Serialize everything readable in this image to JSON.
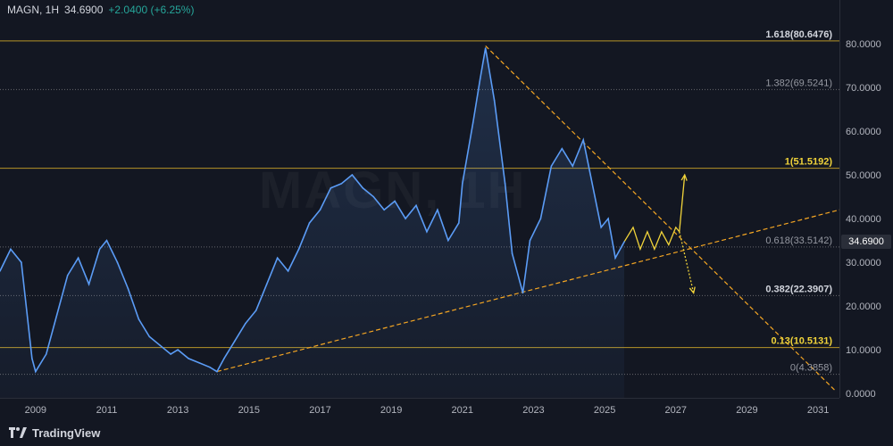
{
  "header": {
    "symbol": "MAGN, 1H",
    "price": "34.6900",
    "change": "+2.0400 (+6.25%)"
  },
  "watermark": "MAGN, 1H",
  "brand": "TradingView",
  "colors": {
    "background": "#131722",
    "price_line": "#5b9cf6",
    "projection": "#f0d33a",
    "trend_line": "#f5a623",
    "fib_highlight": "#c9a227",
    "fib_dotted": "#8a8a8a",
    "up": "#26a69a"
  },
  "chart_data": {
    "type": "line",
    "title": "MAGN, 1H",
    "xlabel": "",
    "ylabel": "",
    "xlim": [
      2008.0,
      2031.6
    ],
    "ylim": [
      -1.0,
      90.0
    ],
    "x_ticks": [
      2009,
      2011,
      2013,
      2015,
      2017,
      2019,
      2021,
      2023,
      2025,
      2027,
      2029,
      2031
    ],
    "y_ticks": [
      0,
      10,
      20,
      30,
      40,
      50,
      60,
      70,
      80
    ],
    "y_tick_labels": [
      "0.0000",
      "10.0000",
      "20.0000",
      "30.0000",
      "40.0000",
      "50.0000",
      "60.0000",
      "70.0000",
      "80.0000"
    ],
    "last_price": 34.69,
    "last_price_label": "34.6900",
    "series": [
      {
        "role": "price",
        "x": [
          2008.0,
          2008.3,
          2008.6,
          2008.9,
          2009.0,
          2009.3,
          2009.6,
          2009.9,
          2010.2,
          2010.5,
          2010.8,
          2011.0,
          2011.3,
          2011.6,
          2011.9,
          2012.2,
          2012.5,
          2012.8,
          2013.0,
          2013.3,
          2013.6,
          2013.9,
          2014.1,
          2014.3,
          2014.6,
          2014.9,
          2015.2,
          2015.5,
          2015.8,
          2016.1,
          2016.4,
          2016.7,
          2017.0,
          2017.3,
          2017.6,
          2017.9,
          2018.2,
          2018.5,
          2018.8,
          2019.1,
          2019.4,
          2019.7,
          2020.0,
          2020.3,
          2020.6,
          2020.9,
          2021.0,
          2021.3,
          2021.5,
          2021.65,
          2021.9,
          2022.2,
          2022.4,
          2022.7,
          2022.9,
          2023.2,
          2023.5,
          2023.8,
          2024.1,
          2024.4,
          2024.6,
          2024.9,
          2025.1,
          2025.3,
          2025.55
        ],
        "y": [
          28,
          33,
          30,
          8,
          5,
          9,
          18,
          27,
          31,
          25,
          33,
          35,
          30,
          24,
          17,
          13,
          11,
          9,
          10,
          8,
          7,
          6,
          5,
          8,
          12,
          16,
          19,
          25,
          31,
          28,
          33,
          39,
          42,
          47,
          48,
          50,
          47,
          45,
          42,
          44,
          40,
          43,
          37,
          42,
          35,
          39,
          48,
          62,
          72,
          79,
          67,
          48,
          32,
          23,
          35,
          40,
          52,
          56,
          52,
          58,
          50,
          38,
          40,
          31,
          34.69
        ]
      },
      {
        "role": "projection",
        "x": [
          2025.55,
          2025.8,
          2026.0,
          2026.2,
          2026.4,
          2026.6,
          2026.8,
          2027.0,
          2027.1
        ],
        "y": [
          34.69,
          38,
          33,
          37,
          33,
          37,
          34,
          38,
          37
        ]
      },
      {
        "role": "projection-up",
        "x": [
          2027.1,
          2027.25
        ],
        "y": [
          37,
          50
        ]
      },
      {
        "role": "projection-down",
        "x": [
          2027.1,
          2027.5
        ],
        "y": [
          37,
          23
        ]
      }
    ],
    "trend_lines": [
      {
        "name": "support",
        "x": [
          2014.1,
          2031.6
        ],
        "y": [
          5.0,
          42.0
        ]
      },
      {
        "name": "resistance",
        "x": [
          2021.65,
          2031.5
        ],
        "y": [
          79.5,
          0.5
        ]
      }
    ],
    "fib_levels": [
      {
        "label": "1.618(80.6476)",
        "value": 80.6476,
        "style": "highlight",
        "label_weight": "bold",
        "label_color": "#d1d4dc"
      },
      {
        "label": "1.382(69.5241)",
        "value": 69.5241,
        "style": "dotted",
        "label_weight": "normal",
        "label_color": "#9598a1"
      },
      {
        "label": "1(51.5192)",
        "value": 51.5192,
        "style": "highlight",
        "label_weight": "bold",
        "label_color": "#f0d33a"
      },
      {
        "label": "0.618(33.5142)",
        "value": 33.5142,
        "style": "dotted",
        "label_weight": "normal",
        "label_color": "#9598a1"
      },
      {
        "label": "0.382(22.3907)",
        "value": 22.3907,
        "style": "dotted",
        "label_weight": "bold",
        "label_color": "#d1d4dc"
      },
      {
        "label": "0.13(10.5131)",
        "value": 10.5131,
        "style": "highlight",
        "label_weight": "bold",
        "label_color": "#f0d33a"
      },
      {
        "label": "0(4.3858)",
        "value": 4.3858,
        "style": "dotted",
        "label_weight": "normal",
        "label_color": "#9598a1"
      }
    ]
  }
}
